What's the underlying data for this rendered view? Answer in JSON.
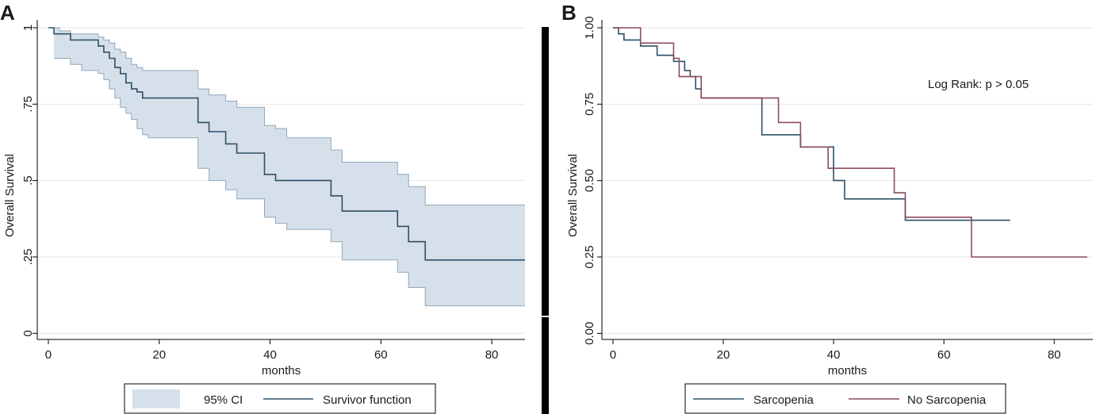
{
  "chart_data": [
    {
      "panel_label": "A",
      "type": "line",
      "subtype": "kaplan-meier-step",
      "xlabel": "months",
      "ylabel": "Overall Survival",
      "xlim": [
        -2,
        86
      ],
      "ylim": [
        -0.02,
        1.0
      ],
      "xticks": [
        0,
        20,
        40,
        60,
        80
      ],
      "xtick_labels": [
        "0",
        "20",
        "40",
        "60",
        "80"
      ],
      "yticks": [
        0,
        0.25,
        0.5,
        0.75,
        1
      ],
      "ytick_labels": [
        "0",
        ".25",
        ".5",
        ".75",
        "1"
      ],
      "grid": true,
      "legend": "bottom",
      "colors": {
        "line": "#2e5068",
        "ci_fill": "#d6e0ea",
        "ci_edge": "#8ea9bd",
        "grid": "#e6e6e6"
      },
      "series": [
        {
          "name": "Survivor function",
          "x": [
            0,
            1,
            2,
            4,
            6,
            9,
            10,
            11,
            12,
            13,
            14,
            15,
            16,
            17,
            18,
            27,
            29,
            32,
            34,
            39,
            41,
            43,
            51,
            53,
            61,
            63,
            65,
            66,
            68,
            86
          ],
          "y": [
            1.0,
            0.98,
            0.98,
            0.96,
            0.96,
            0.94,
            0.92,
            0.9,
            0.87,
            0.85,
            0.82,
            0.8,
            0.79,
            0.77,
            0.77,
            0.69,
            0.66,
            0.62,
            0.59,
            0.52,
            0.5,
            0.5,
            0.45,
            0.4,
            0.4,
            0.35,
            0.3,
            0.3,
            0.24,
            0.24
          ]
        },
        {
          "name": "95% CI",
          "x": [
            1,
            2,
            4,
            6,
            9,
            10,
            11,
            12,
            13,
            14,
            15,
            16,
            17,
            18,
            27,
            29,
            32,
            34,
            39,
            41,
            43,
            51,
            53,
            61,
            63,
            65,
            66,
            68,
            86
          ],
          "upper": [
            1.0,
            0.99,
            0.98,
            0.98,
            0.97,
            0.96,
            0.95,
            0.93,
            0.92,
            0.9,
            0.88,
            0.87,
            0.86,
            0.86,
            0.8,
            0.78,
            0.76,
            0.74,
            0.68,
            0.67,
            0.64,
            0.6,
            0.56,
            0.56,
            0.52,
            0.48,
            0.48,
            0.42,
            0.42
          ],
          "lower": [
            0.9,
            0.9,
            0.88,
            0.86,
            0.85,
            0.83,
            0.8,
            0.77,
            0.74,
            0.72,
            0.7,
            0.67,
            0.65,
            0.64,
            0.54,
            0.5,
            0.47,
            0.44,
            0.38,
            0.36,
            0.34,
            0.3,
            0.24,
            0.24,
            0.2,
            0.15,
            0.15,
            0.09,
            0.09
          ]
        }
      ],
      "legend_entries": [
        "95% CI",
        "Survivor function"
      ]
    },
    {
      "panel_label": "B",
      "type": "line",
      "subtype": "kaplan-meier-step",
      "xlabel": "months",
      "ylabel": "Overall Survival",
      "xlim": [
        -2,
        87
      ],
      "ylim": [
        -0.02,
        1.0
      ],
      "xticks": [
        0,
        20,
        40,
        60,
        80
      ],
      "xtick_labels": [
        "0",
        "20",
        "40",
        "60",
        "80"
      ],
      "yticks": [
        0,
        0.25,
        0.5,
        0.75,
        1
      ],
      "ytick_labels": [
        "0.00",
        "0.25",
        "0.50",
        "0.75",
        "1.00"
      ],
      "grid": true,
      "legend": "bottom",
      "annotation": "Log Rank: p > 0.05",
      "colors": {
        "grid": "#e6e6e6"
      },
      "series": [
        {
          "name": "Sarcopenia",
          "color": "#2e5068",
          "x": [
            0,
            1,
            2,
            5,
            8,
            11,
            13,
            14,
            15,
            16,
            27,
            34,
            40,
            42,
            53,
            72
          ],
          "y": [
            1.0,
            0.98,
            0.96,
            0.94,
            0.91,
            0.89,
            0.86,
            0.84,
            0.8,
            0.77,
            0.65,
            0.61,
            0.5,
            0.44,
            0.37,
            0.37
          ]
        },
        {
          "name": "No Sarcopenia",
          "color": "#8e4b5e",
          "x": [
            0,
            5,
            8,
            11,
            12,
            14,
            16,
            27,
            30,
            34,
            39,
            51,
            52,
            53,
            65,
            86
          ],
          "y": [
            1.0,
            0.95,
            0.95,
            0.9,
            0.84,
            0.84,
            0.77,
            0.77,
            0.69,
            0.61,
            0.54,
            0.46,
            0.46,
            0.38,
            0.25,
            0.25
          ]
        }
      ],
      "legend_entries": [
        "Sarcopenia",
        "No Sarcopenia"
      ]
    }
  ]
}
